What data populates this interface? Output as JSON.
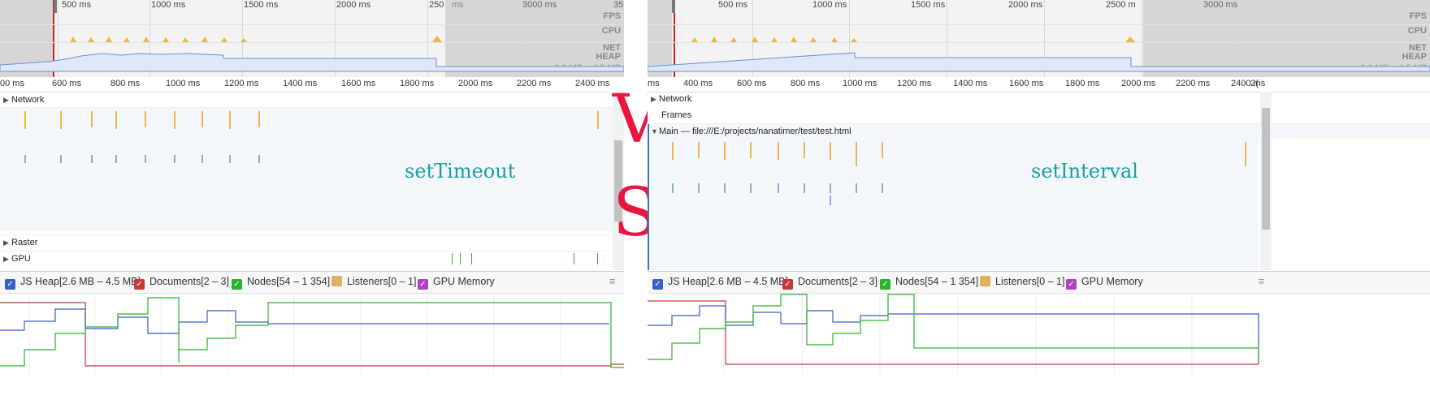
{
  "left": {
    "overview_ticks": [
      "500 ms",
      "1000 ms",
      "1500 ms",
      "2000 ms",
      "250",
      "ms",
      "3000 ms",
      "35"
    ],
    "overview_labels": {
      "fps": "FPS",
      "cpu": "CPU",
      "net": "NET",
      "heap": "HEAP"
    },
    "heap_range": "2.6 MB – 4.5 MB",
    "ruler_ticks": [
      "00 ms",
      "600 ms",
      "800 ms",
      "1000 ms",
      "1200 ms",
      "1400 ms",
      "1600 ms",
      "1800 ms",
      "2000 ms",
      "2200 ms",
      "2400 ms"
    ],
    "tracks": {
      "network": "Network",
      "raster": "Raster",
      "gpu": "GPU"
    },
    "annotation": "setTimeout"
  },
  "right": {
    "overview_ticks": [
      "500 ms",
      "1000 ms",
      "1500 ms",
      "2000 ms",
      "2500 m",
      "3000 ms"
    ],
    "overview_labels": {
      "fps": "FPS",
      "cpu": "CPU",
      "net": "NET",
      "heap": "HEAP"
    },
    "heap_range": "2.6 MB – 4.5 MB",
    "ruler_ticks": [
      "ms",
      "400 ms",
      "600 ms",
      "800 ms",
      "1000 ms",
      "1200 ms",
      "1400 ms",
      "1600 ms",
      "1800 ms",
      "2000 ms",
      "2200 ms",
      "2400 ms",
      "2("
    ],
    "tracks": {
      "network": "Network",
      "frames": "Frames",
      "main": "Main — file:///E:/projects/nanatimer/test/test.html"
    },
    "annotation": "setInterval"
  },
  "counters": {
    "js_heap": "JS Heap[2.6 MB – 4.5 MB]",
    "documents": "Documents[2 – 3]",
    "nodes": "Nodes[54 – 1 354]",
    "listeners": "Listeners[0 – 1]",
    "gpu_memory": "GPU Memory"
  },
  "vs_text": {
    "v": "V",
    "s": "S"
  },
  "colors": {
    "js_heap": "#3a5fc4",
    "documents": "#c43a3a",
    "nodes": "#2ab22a",
    "listeners": "#e0b060",
    "gpu": "#b040c0",
    "script": "#e8b84a",
    "layout": "#8fa8d8",
    "annotation": "#1a9e9e",
    "vs": "#e8163f"
  }
}
